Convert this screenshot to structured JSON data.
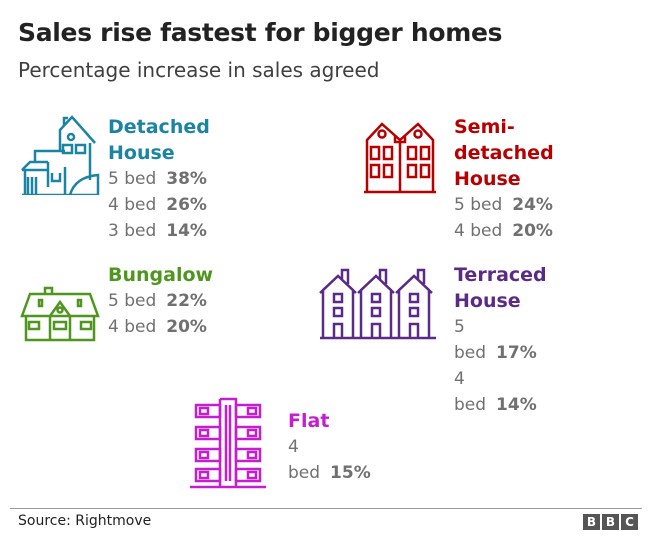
{
  "header": {
    "title": "Sales rise fastest for bigger homes",
    "subtitle": "Percentage increase in sales agreed"
  },
  "footer": {
    "source": "Source: Rightmove",
    "logo": [
      "B",
      "B",
      "C"
    ]
  },
  "colors": {
    "detached": "#1b84a3",
    "semi": "#b80000",
    "bungalow": "#4f961f",
    "terraced": "#5b2a86",
    "flat": "#c41fcf"
  },
  "chart_data": {
    "type": "table",
    "title": "Sales rise fastest for bigger homes",
    "subtitle": "Percentage increase in sales agreed",
    "unit": "%",
    "groups": [
      {
        "name": "Detached House",
        "icon": "detached-house-icon",
        "rows": [
          {
            "label": "5 bed",
            "value": "38%"
          },
          {
            "label": "4 bed",
            "value": "26%"
          },
          {
            "label": "3 bed",
            "value": "14%"
          }
        ]
      },
      {
        "name": "Semi-detached",
        "name2": "House",
        "icon": "semi-detached-house-icon",
        "rows": [
          {
            "label": "5 bed",
            "value": "24%"
          },
          {
            "label": "4 bed",
            "value": "20%"
          }
        ]
      },
      {
        "name": "Bungalow",
        "icon": "bungalow-icon",
        "rows": [
          {
            "label": "5 bed",
            "value": "22%"
          },
          {
            "label": "4 bed",
            "value": "20%"
          }
        ]
      },
      {
        "name": "Terraced House",
        "icon": "terraced-house-icon",
        "rows": [
          {
            "label": "5 bed",
            "value": "17%"
          },
          {
            "label": "4 bed",
            "value": "14%"
          }
        ]
      },
      {
        "name": "Flat",
        "icon": "flat-icon",
        "rows": [
          {
            "label": "4 bed",
            "value": "15%"
          }
        ]
      }
    ]
  }
}
